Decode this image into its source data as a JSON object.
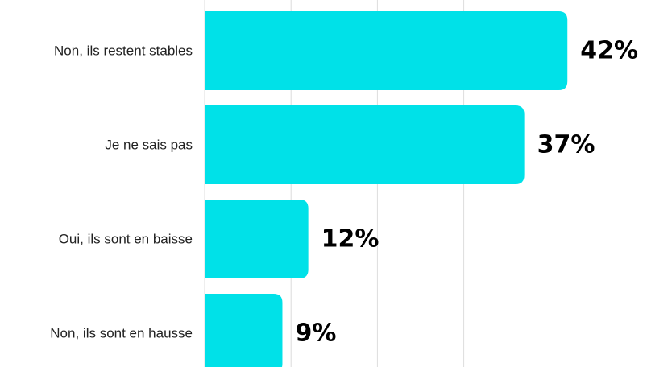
{
  "chart_data": {
    "type": "bar",
    "orientation": "horizontal",
    "categories": [
      "Non, ils restent stables",
      "Je ne sais pas",
      "Oui, ils sont en baisse",
      "Non, ils sont en hausse"
    ],
    "values": [
      42,
      37,
      12,
      9
    ],
    "value_labels": [
      "42%",
      "37%",
      "12%",
      "9%"
    ],
    "unit": "%",
    "bar_color": "#00E1E8",
    "xlim": [
      0,
      40
    ],
    "x_gridlines": [
      0,
      10,
      20,
      30
    ],
    "grid": true,
    "legend": "none"
  }
}
